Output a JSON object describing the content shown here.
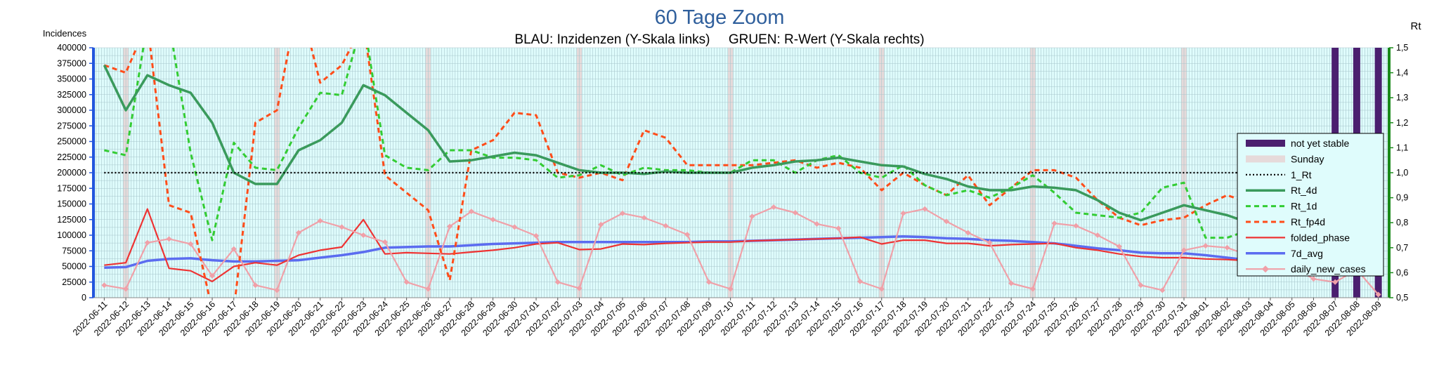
{
  "chart_data": {
    "type": "line",
    "title": "60 Tage Zoom",
    "subtitle": "BLAU: Inzidenzen (Y-Skala links)     GRUEN: R-Wert (Y-Skala rechts)",
    "ylabel": "Incidences",
    "ylabel_right": "Rt",
    "ylim": [
      0,
      400000
    ],
    "ylim_right": [
      0.5,
      1.5
    ],
    "yticks": [
      0,
      25000,
      50000,
      75000,
      100000,
      125000,
      150000,
      175000,
      200000,
      225000,
      250000,
      275000,
      300000,
      325000,
      350000,
      375000,
      400000
    ],
    "yticks_right": [
      0.5,
      0.6,
      0.7,
      0.8,
      0.9,
      1.0,
      1.1,
      1.2,
      1.3,
      1.4,
      1.5
    ],
    "grid": true,
    "legend_position": "right",
    "categories": [
      "2022-06-11",
      "2022-06-12",
      "2022-06-13",
      "2022-06-14",
      "2022-06-15",
      "2022-06-16",
      "2022-06-17",
      "2022-06-18",
      "2022-06-19",
      "2022-06-20",
      "2022-06-21",
      "2022-06-22",
      "2022-06-23",
      "2022-06-24",
      "2022-06-25",
      "2022-06-26",
      "2022-06-27",
      "2022-06-28",
      "2022-06-29",
      "2022-06-30",
      "2022-07-01",
      "2022-07-02",
      "2022-07-03",
      "2022-07-04",
      "2022-07-05",
      "2022-07-06",
      "2022-07-07",
      "2022-07-08",
      "2022-07-09",
      "2022-07-10",
      "2022-07-11",
      "2022-07-12",
      "2022-07-13",
      "2022-07-14",
      "2022-07-15",
      "2022-07-16",
      "2022-07-17",
      "2022-07-18",
      "2022-07-19",
      "2022-07-20",
      "2022-07-21",
      "2022-07-22",
      "2022-07-23",
      "2022-07-24",
      "2022-07-25",
      "2022-07-26",
      "2022-07-27",
      "2022-07-28",
      "2022-07-29",
      "2022-07-30",
      "2022-07-31",
      "2022-08-01",
      "2022-08-02",
      "2022-08-03",
      "2022-08-04",
      "2022-08-05",
      "2022-08-06",
      "2022-08-07",
      "2022-08-08",
      "2022-08-09"
    ],
    "sundays": [
      "2022-06-12",
      "2022-06-19",
      "2022-06-26",
      "2022-07-03",
      "2022-07-10",
      "2022-07-17",
      "2022-07-24",
      "2022-07-31",
      "2022-08-07"
    ],
    "not_yet_stable": [
      "2022-08-07",
      "2022-08-08",
      "2022-08-09"
    ],
    "series": [
      {
        "name": "not yet stable",
        "type": "band",
        "color": "#4b1f6f"
      },
      {
        "name": "Sunday",
        "type": "band",
        "color": "#e6dada"
      },
      {
        "name": "1_Rt",
        "axis": "right",
        "color": "#000000",
        "style": "dotted",
        "values": [
          1,
          1,
          1,
          1,
          1,
          1,
          1,
          1,
          1,
          1,
          1,
          1,
          1,
          1,
          1,
          1,
          1,
          1,
          1,
          1,
          1,
          1,
          1,
          1,
          1,
          1,
          1,
          1,
          1,
          1,
          1,
          1,
          1,
          1,
          1,
          1,
          1,
          1,
          1,
          1,
          1,
          1,
          1,
          1,
          1,
          1,
          1,
          1,
          1,
          1,
          1,
          1,
          1,
          1,
          1,
          1,
          1,
          1,
          1,
          1
        ]
      },
      {
        "name": "Rt_4d",
        "axis": "right",
        "color": "#3a9a5c",
        "style": "solid",
        "values": [
          1.43,
          1.25,
          1.39,
          1.35,
          1.32,
          1.2,
          1.0,
          0.955,
          0.955,
          1.09,
          1.13,
          1.2,
          1.35,
          1.31,
          1.24,
          1.17,
          1.045,
          1.05,
          1.065,
          1.08,
          1.07,
          1.04,
          1.01,
          1.0,
          1.0,
          0.995,
          1.005,
          1.0,
          1.0,
          1.0,
          1.02,
          1.03,
          1.045,
          1.05,
          1.06,
          1.045,
          1.03,
          1.025,
          0.995,
          0.975,
          0.945,
          0.93,
          0.93,
          0.945,
          0.94,
          0.93,
          0.89,
          0.84,
          0.81,
          0.84,
          0.87,
          0.85,
          0.83,
          0.8,
          0.76,
          0.79,
          0.845,
          0.9,
          0.9,
          0.84
        ]
      },
      {
        "name": "Rt_1d",
        "axis": "right",
        "color": "#33cc33",
        "style": "dashed",
        "values": [
          1.09,
          1.07,
          1.6,
          1.6,
          1.08,
          0.73,
          1.12,
          1.02,
          1.01,
          1.18,
          1.32,
          1.31,
          1.62,
          1.07,
          1.02,
          1.01,
          1.09,
          1.09,
          1.06,
          1.06,
          1.05,
          0.98,
          0.99,
          1.03,
          0.99,
          1.02,
          1.01,
          1.01,
          1.0,
          1.0,
          1.05,
          1.05,
          1.0,
          1.05,
          1.07,
          1.0,
          0.98,
          1.03,
          0.95,
          0.91,
          0.93,
          0.9,
          0.94,
          0.99,
          0.92,
          0.84,
          0.83,
          0.82,
          0.84,
          0.94,
          0.96,
          0.74,
          0.74,
          0.77,
          0.82,
          0.87,
          0.99,
          0.99,
          0.8,
          0.66
        ]
      },
      {
        "name": "Rt_fp4d",
        "axis": "right",
        "color": "#ff4d1a",
        "style": "dashed",
        "values": [
          1.43,
          1.4,
          1.6,
          0.87,
          0.84,
          0.45,
          0.45,
          1.2,
          1.25,
          1.7,
          1.36,
          1.43,
          1.6,
          0.99,
          0.92,
          0.85,
          0.57,
          1.09,
          1.13,
          1.24,
          1.23,
          1.0,
          0.98,
          1.0,
          0.97,
          1.17,
          1.14,
          1.03,
          1.03,
          1.03,
          1.03,
          1.04,
          1.05,
          1.02,
          1.04,
          1.02,
          0.93,
          1.0,
          0.95,
          0.91,
          0.99,
          0.87,
          0.94,
          1.01,
          1.01,
          0.98,
          0.89,
          0.82,
          0.79,
          0.81,
          0.82,
          0.87,
          0.91,
          0.88,
          0.9,
          0.89,
          0.96,
          1.0,
          0.78,
          0.72
        ]
      },
      {
        "name": "folded_phase",
        "axis": "left",
        "color": "#ee3333",
        "style": "solid",
        "values": [
          52000,
          56000,
          142000,
          47000,
          43000,
          26000,
          50000,
          56000,
          52000,
          68000,
          76000,
          81000,
          125000,
          70000,
          72000,
          71000,
          70000,
          73000,
          76000,
          80000,
          86000,
          88000,
          77000,
          78000,
          86000,
          85000,
          87000,
          88000,
          89000,
          89000,
          91000,
          92000,
          93000,
          94000,
          95000,
          97000,
          86000,
          92000,
          92000,
          87000,
          87000,
          83000,
          85000,
          86000,
          87000,
          80000,
          76000,
          70000,
          66000,
          64000,
          64000,
          62000,
          61000,
          59000,
          58000,
          55000,
          57000,
          58000,
          52000,
          45000
        ]
      },
      {
        "name": "7d_avg",
        "axis": "left",
        "color": "#5b6cf0",
        "style": "solid",
        "values": [
          48000,
          49000,
          59000,
          62000,
          63000,
          60000,
          58000,
          58000,
          59000,
          60000,
          64000,
          68000,
          73000,
          80000,
          81000,
          82000,
          82000,
          84000,
          86000,
          87000,
          88000,
          89000,
          89000,
          89000,
          89000,
          89000,
          89000,
          89000,
          90000,
          90000,
          91000,
          92000,
          93000,
          94000,
          95000,
          96000,
          97000,
          98000,
          97000,
          95000,
          94000,
          92000,
          91000,
          89000,
          87000,
          83000,
          79000,
          76000,
          72000,
          71000,
          71000,
          68000,
          64000,
          60000,
          57000,
          55000,
          54000,
          52000,
          51000,
          44000
        ]
      },
      {
        "name": "daily_new_cases",
        "axis": "left",
        "color": "#f0a0a8",
        "style": "solid",
        "marker": "diamond",
        "values": [
          20000,
          14000,
          88000,
          94000,
          86000,
          35000,
          78000,
          20000,
          12000,
          104000,
          123000,
          113000,
          100000,
          89000,
          25000,
          14000,
          114000,
          138000,
          125000,
          113000,
          99000,
          25000,
          15000,
          117000,
          135000,
          128000,
          115000,
          101000,
          25000,
          14000,
          130000,
          145000,
          136000,
          118000,
          111000,
          26000,
          14000,
          135000,
          142000,
          122000,
          104000,
          88000,
          23000,
          14000,
          119000,
          115000,
          100000,
          82000,
          20000,
          12000,
          76000,
          83000,
          80000,
          68000,
          58000,
          50000,
          30000,
          25000,
          45000,
          5000
        ]
      }
    ]
  }
}
